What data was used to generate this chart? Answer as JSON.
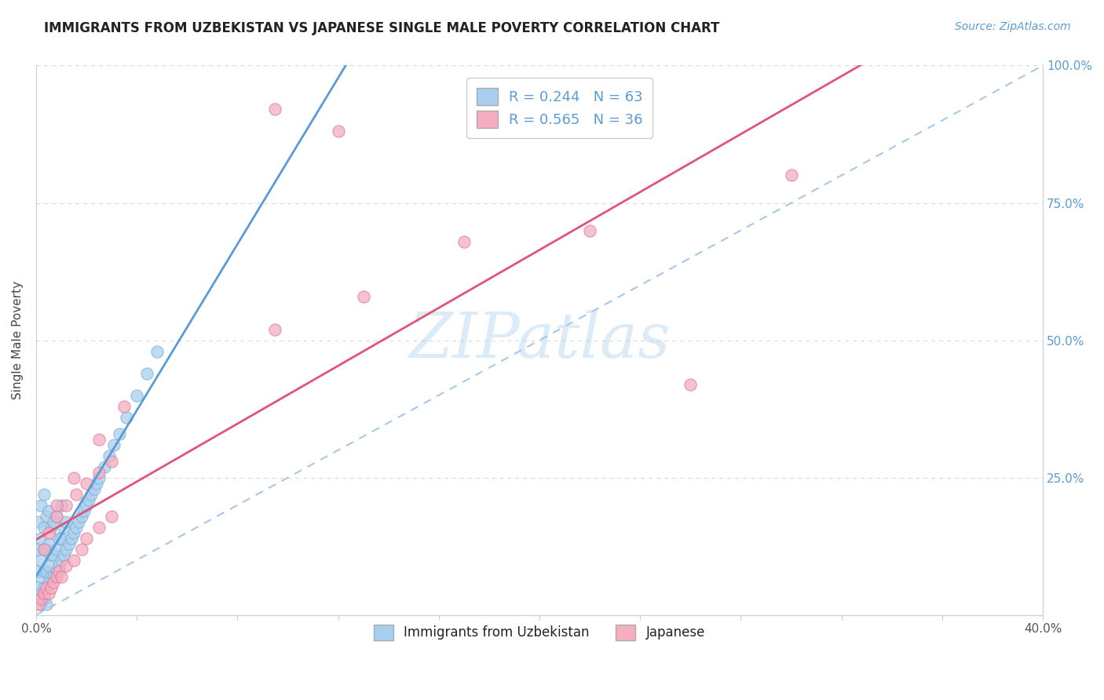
{
  "title": "IMMIGRANTS FROM UZBEKISTAN VS JAPANESE SINGLE MALE POVERTY CORRELATION CHART",
  "source": "Source: ZipAtlas.com",
  "ylabel": "Single Male Poverty",
  "xlim": [
    0.0,
    0.4
  ],
  "ylim": [
    0.0,
    1.0
  ],
  "series1_color": "#aacfee",
  "series1_edge": "#7bafd4",
  "series2_color": "#f5aec0",
  "series2_edge": "#e07898",
  "line1_color": "#5b9bd5",
  "line2_color": "#e05575",
  "diag_color": "#a8c8e8",
  "R1": 0.244,
  "N1": 63,
  "R2": 0.565,
  "N2": 36,
  "watermark": "ZIPatlas",
  "blue_x": [
    0.001,
    0.001,
    0.001,
    0.001,
    0.002,
    0.002,
    0.002,
    0.002,
    0.002,
    0.003,
    0.003,
    0.003,
    0.003,
    0.003,
    0.004,
    0.004,
    0.004,
    0.005,
    0.005,
    0.005,
    0.005,
    0.006,
    0.006,
    0.006,
    0.007,
    0.007,
    0.007,
    0.008,
    0.008,
    0.008,
    0.009,
    0.009,
    0.01,
    0.01,
    0.01,
    0.011,
    0.011,
    0.012,
    0.012,
    0.013,
    0.014,
    0.015,
    0.016,
    0.017,
    0.018,
    0.019,
    0.02,
    0.021,
    0.022,
    0.023,
    0.024,
    0.025,
    0.027,
    0.029,
    0.031,
    0.033,
    0.036,
    0.04,
    0.044,
    0.048,
    0.002,
    0.003,
    0.004
  ],
  "blue_y": [
    0.05,
    0.08,
    0.12,
    0.17,
    0.04,
    0.07,
    0.1,
    0.14,
    0.2,
    0.05,
    0.08,
    0.12,
    0.16,
    0.22,
    0.08,
    0.12,
    0.18,
    0.06,
    0.09,
    0.13,
    0.19,
    0.07,
    0.11,
    0.16,
    0.07,
    0.11,
    0.17,
    0.08,
    0.12,
    0.18,
    0.09,
    0.14,
    0.1,
    0.14,
    0.2,
    0.11,
    0.16,
    0.12,
    0.17,
    0.13,
    0.14,
    0.15,
    0.16,
    0.17,
    0.18,
    0.19,
    0.2,
    0.21,
    0.22,
    0.23,
    0.24,
    0.25,
    0.27,
    0.29,
    0.31,
    0.33,
    0.36,
    0.4,
    0.44,
    0.48,
    0.02,
    0.03,
    0.02
  ],
  "pink_x": [
    0.001,
    0.002,
    0.003,
    0.004,
    0.005,
    0.006,
    0.007,
    0.008,
    0.009,
    0.01,
    0.012,
    0.015,
    0.018,
    0.02,
    0.025,
    0.03,
    0.003,
    0.005,
    0.008,
    0.012,
    0.016,
    0.02,
    0.025,
    0.03,
    0.008,
    0.015,
    0.025,
    0.035,
    0.095,
    0.13,
    0.17,
    0.22,
    0.26,
    0.3,
    0.12,
    0.095
  ],
  "pink_y": [
    0.02,
    0.03,
    0.04,
    0.05,
    0.04,
    0.05,
    0.06,
    0.07,
    0.08,
    0.07,
    0.09,
    0.1,
    0.12,
    0.14,
    0.16,
    0.18,
    0.12,
    0.15,
    0.18,
    0.2,
    0.22,
    0.24,
    0.26,
    0.28,
    0.2,
    0.25,
    0.32,
    0.38,
    0.52,
    0.58,
    0.68,
    0.7,
    0.42,
    0.8,
    0.88,
    0.92
  ]
}
